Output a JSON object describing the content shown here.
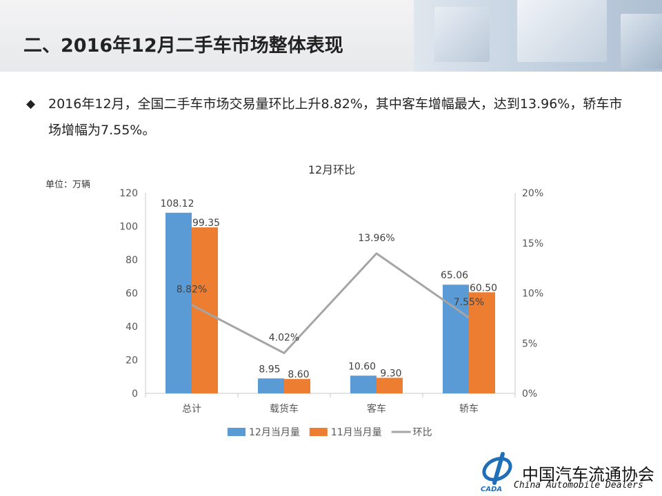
{
  "header": {
    "title": "二、2016年12月二手车市场整体表现"
  },
  "bullet": {
    "symbol": "◆",
    "text": "2016年12月，全国二手车市场交易量环比上升8.82%，其中客车增幅最大，达到13.96%，轿车市场增幅为7.55%。"
  },
  "logo": {
    "cn": "中国汽车流通协会",
    "en": "China Automobile Dealers",
    "mark": "CADA"
  },
  "chart_data": {
    "type": "bar",
    "title": "12月环比",
    "unit_label": "单位：万辆",
    "categories": [
      "总计",
      "载货车",
      "客车",
      "轿车"
    ],
    "series": [
      {
        "name": "12月当月量",
        "type": "bar",
        "axis": "left",
        "color": "#5b9bd5",
        "values": [
          108.12,
          8.95,
          10.6,
          65.06
        ],
        "labels": [
          "108.12",
          "8.95",
          "10.60",
          "65.06"
        ]
      },
      {
        "name": "11月当月量",
        "type": "bar",
        "axis": "left",
        "color": "#ed7d31",
        "values": [
          99.35,
          8.6,
          9.3,
          60.5
        ],
        "labels": [
          "99.35",
          "8.60",
          "9.30",
          "60.50"
        ]
      },
      {
        "name": "环比",
        "type": "line",
        "axis": "right",
        "color": "#a5a5a5",
        "values": [
          8.82,
          4.02,
          13.96,
          7.55
        ],
        "labels": [
          "8.82%",
          "4.02%",
          "13.96%",
          "7.55%"
        ]
      }
    ],
    "y_left": {
      "min": 0,
      "max": 120,
      "ticks": [
        0,
        20,
        40,
        60,
        80,
        100,
        120
      ],
      "tick_labels": [
        "0",
        "20",
        "40",
        "60",
        "80",
        "100",
        "120"
      ]
    },
    "y_right": {
      "min": 0,
      "max": 20,
      "ticks": [
        0,
        5,
        10,
        15,
        20
      ],
      "tick_labels": [
        "0%",
        "5%",
        "10%",
        "15%",
        "20%"
      ]
    },
    "grid": false,
    "legend": "bottom"
  }
}
